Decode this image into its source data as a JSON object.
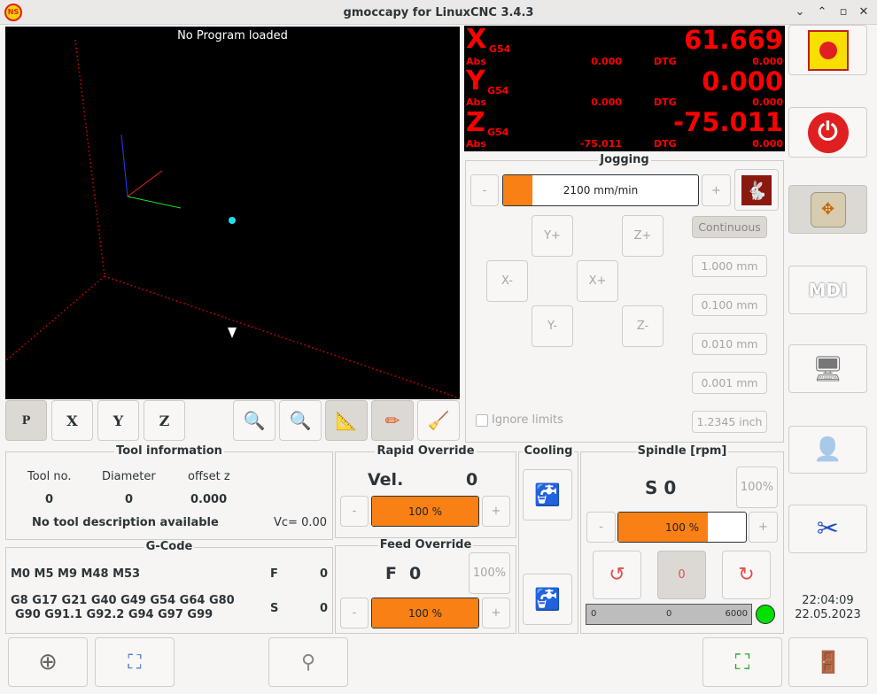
{
  "window": {
    "title": "gmoccapy for LinuxCNC  3.4.3",
    "logo_text": "NS",
    "controls": [
      "⌄",
      "⌃",
      "▫",
      "✕"
    ]
  },
  "preview": {
    "status": "No Program loaded",
    "toolbar": [
      "P",
      "X",
      "Y",
      "Z"
    ]
  },
  "dro": {
    "axes": [
      {
        "axis": "X",
        "coord": "G54",
        "value": "61.669",
        "abs_label": "Abs",
        "abs": "0.000",
        "dtg_label": "DTG",
        "dtg": "0.000"
      },
      {
        "axis": "Y",
        "coord": "G54",
        "value": "0.000",
        "abs_label": "Abs",
        "abs": "0.000",
        "dtg_label": "DTG",
        "dtg": "0.000"
      },
      {
        "axis": "Z",
        "coord": "G54",
        "value": "-75.011",
        "abs_label": "Abs",
        "abs": "-75.011",
        "dtg_label": "DTG",
        "dtg": "0.000"
      }
    ]
  },
  "jogging": {
    "title": "Jogging",
    "minus": "-",
    "plus": "+",
    "speed": "2100 mm/min",
    "speed_fraction": 0.15,
    "buttons": {
      "yplus": "Y+",
      "zplus": "Z+",
      "xminus": "X-",
      "xplus": "X+",
      "yminus": "Y-",
      "zminus": "Z-"
    },
    "increments": [
      "Continuous",
      "1.000 mm",
      "0.100 mm",
      "0.010 mm",
      "0.001 mm",
      "1.2345 inch"
    ],
    "ignore_limits": "Ignore limits",
    "ignore_limits_checked": false
  },
  "tool": {
    "title": "Tool information",
    "headers": [
      "Tool no.",
      "Diameter",
      "offset z"
    ],
    "values": [
      "0",
      "0",
      "0.000"
    ],
    "description": "No tool description available",
    "vc": "Vc= 0.00"
  },
  "gcode": {
    "title": "G-Code",
    "mcodes": "M0 M5 M9 M48 M53",
    "gcodes1": "G8 G17 G21 G40 G49 G54 G64 G80",
    "gcodes2": "G90 G91.1 G92.2 G94 G97 G99",
    "f_label": "F",
    "f_value": "0",
    "s_label": "S",
    "s_value": "0"
  },
  "rapid": {
    "title": "Rapid Override",
    "vel_label": "Vel.",
    "vel_value": "0",
    "value": "100 %",
    "fraction": 1.0,
    "minus": "-",
    "plus": "+"
  },
  "feed": {
    "title": "Feed Override",
    "f_label": "F",
    "f_value": "0",
    "reset": "100%",
    "value": "100 %",
    "fraction": 1.0,
    "minus": "-",
    "plus": "+"
  },
  "cooling": {
    "title": "Cooling"
  },
  "spindle": {
    "title": "Spindle [rpm]",
    "s_label": "S 0",
    "reset": "100%",
    "value": "100 %",
    "fraction": 0.7,
    "minus": "-",
    "plus": "+",
    "gauge_min": "0",
    "gauge_value": "0",
    "gauge_max": "6000",
    "stop_label": "0",
    "at_speed_color": "#00e000"
  },
  "side": {
    "mdi": "MDI",
    "time": "22:04:09",
    "date": "22.05.2023"
  },
  "colors": {
    "accent": "#f98014",
    "dro": "#ff0000",
    "estop": "#e02020"
  }
}
